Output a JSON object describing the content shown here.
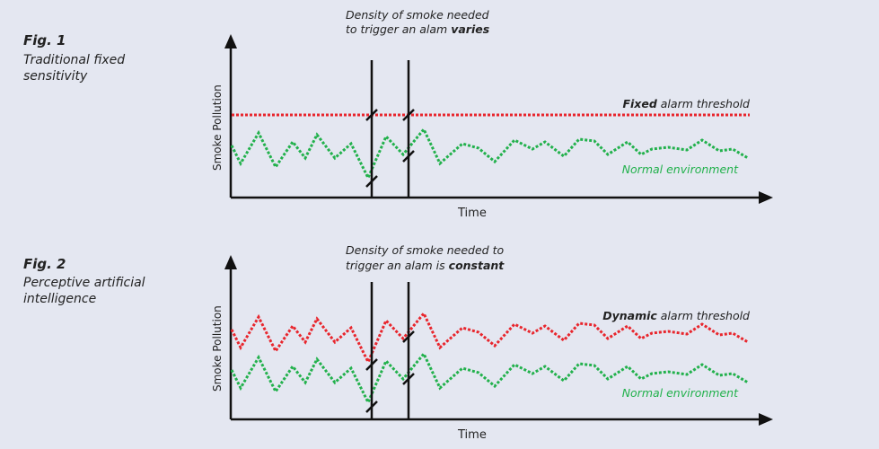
{
  "figures": [
    {
      "fig_label": "Fig. 1",
      "caption_lines": [
        "Traditional fixed",
        "sensitivity"
      ],
      "note_lines": [
        {
          "text": "Density of smoke needed"
        },
        {
          "text": "to trigger an alam ",
          "bold": "varies"
        }
      ],
      "ylabel": "Smoke Pollution",
      "xlabel": "Time",
      "threshold_label": {
        "bold": "Fixed",
        "text": " alarm threshold"
      },
      "normal_label": "Normal environment"
    },
    {
      "fig_label": "Fig. 2",
      "caption_lines": [
        "Perceptive artificial",
        "intelligence"
      ],
      "note_lines": [
        {
          "text": "Density of smoke needed to"
        },
        {
          "text": "trigger an alam is ",
          "bold": "constant"
        }
      ],
      "ylabel": "Smoke Pollution",
      "xlabel": "Time",
      "threshold_label": {
        "bold": "Dynamic",
        "text": " alarm threshold"
      },
      "normal_label": "Normal environment"
    }
  ],
  "colors": {
    "background": "#e4e7f1",
    "axis": "#111111",
    "normal": "#22b14c",
    "threshold": "#e8262d"
  }
}
